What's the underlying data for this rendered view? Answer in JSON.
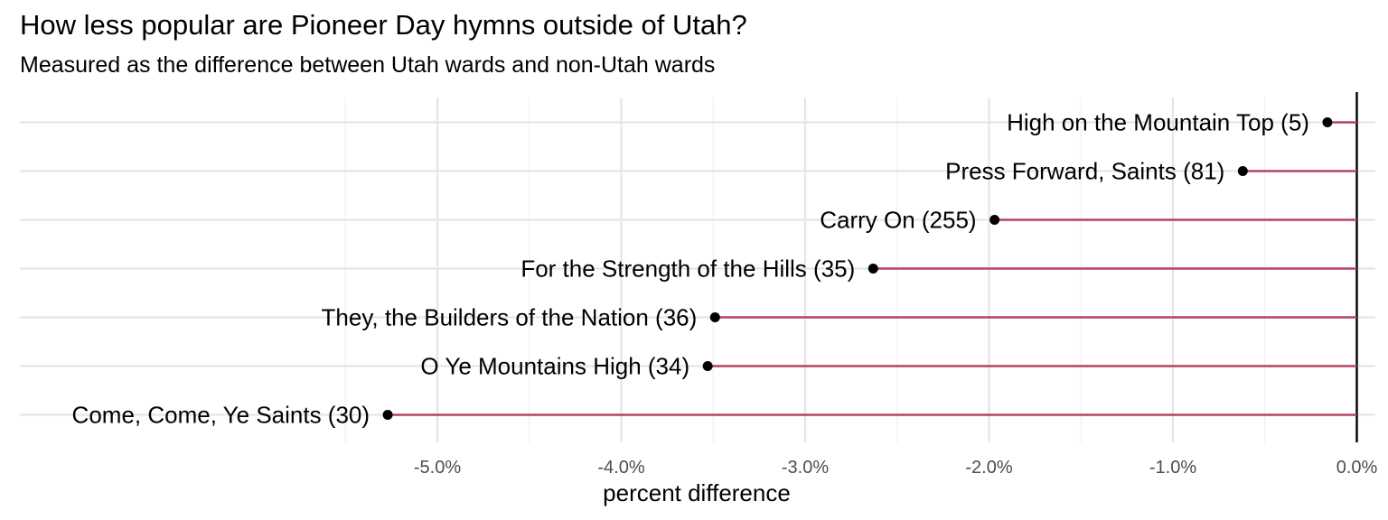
{
  "chart_data": {
    "type": "lollipop",
    "title": "How less popular are Pioneer Day hymns outside of Utah?",
    "subtitle": "Measured as the difference between Utah wards and non-Utah wards",
    "xlabel": "percent difference",
    "ylabel": "",
    "xlim": [
      -7.25,
      0.1
    ],
    "x_ticks": [
      -5.0,
      -4.0,
      -3.0,
      -2.0,
      -1.0,
      0.0
    ],
    "x_tick_labels": [
      "-5.0%",
      "-4.0%",
      "-3.0%",
      "-2.0%",
      "-1.0%",
      "0.0%"
    ],
    "grid": true,
    "zero_line": true,
    "points": [
      {
        "label": "High on the Mountain Top (5)",
        "value": -0.16
      },
      {
        "label": "Press Forward, Saints (81)",
        "value": -0.62
      },
      {
        "label": "Carry On (255)",
        "value": -1.97
      },
      {
        "label": "For the Strength of the Hills (35)",
        "value": -2.63
      },
      {
        "label": "They, the Builders of the Nation (36)",
        "value": -3.49
      },
      {
        "label": "O Ye Mountains High (34)",
        "value": -3.53
      },
      {
        "label": "Come, Come, Ye Saints (30)",
        "value": -5.27
      }
    ],
    "colors": {
      "segment": "#b5465e",
      "point": "#000000",
      "grid_major": "#e5e5e5",
      "grid_minor": "#efefef",
      "zero_line": "#000000"
    }
  }
}
